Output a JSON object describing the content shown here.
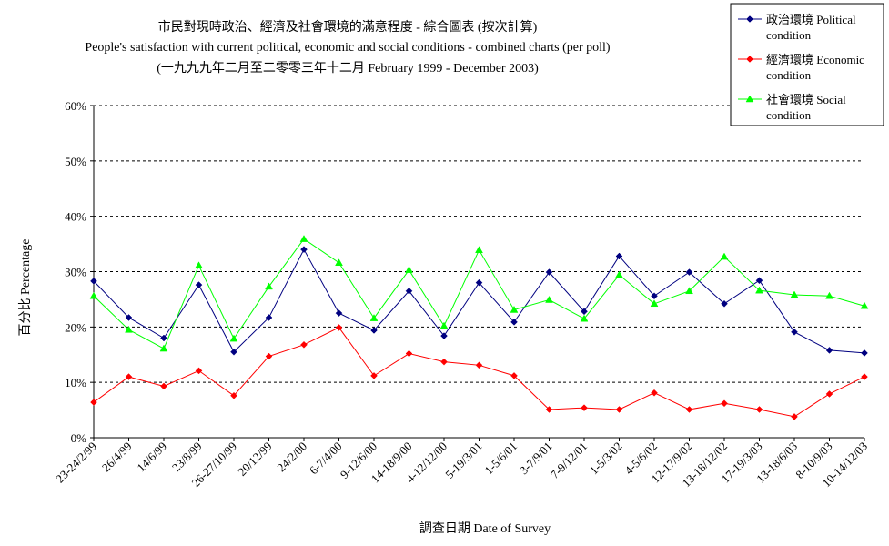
{
  "chart_data": {
    "type": "line",
    "title": [
      "市民對現時政治、經濟及社會環境的滿意程度 - 綜合圖表 (按次計算)",
      "People's satisfaction with current political, economic and social conditions - combined charts  (per poll)",
      "(一九九九年二月至二零零三年十二月 February 1999 - December 2003)"
    ],
    "xlabel": "調查日期 Date of Survey",
    "ylabel": "百分比 Percentage",
    "ylim": [
      0,
      60
    ],
    "yticks": [
      "0%",
      "10%",
      "20%",
      "30%",
      "40%",
      "50%",
      "60%"
    ],
    "grid": "horizontal dashed",
    "legend_position": "top-right",
    "categories": [
      "23-24/2/99",
      "26/4/99",
      "14/6/99",
      "23/8/99",
      "26-27/10/99",
      "20/12/99",
      "24/2/00",
      "6-7/4/00",
      "9-12/6/00",
      "14-18/9/00",
      "4-12/12/00",
      "5-19/3/01",
      "1-5/6/01",
      "3-7/9/01",
      "7-9/12/01",
      "1-5/3/02",
      "4-5/6/02",
      "12-17/9/02",
      "13-18/12/02",
      "17-19/3/03",
      "13-18/6/03",
      "8-10/9/03",
      "10-14/12/03"
    ],
    "series": [
      {
        "name": "政治環境 Political condition",
        "legend_lines": [
          "政治環境 Political",
          "condition"
        ],
        "color": "#000080",
        "marker": "diamond",
        "values": [
          28.3,
          21.7,
          18.0,
          27.6,
          15.5,
          21.7,
          34.0,
          22.5,
          19.4,
          26.5,
          18.4,
          28.0,
          20.9,
          29.9,
          22.8,
          32.8,
          25.6,
          29.9,
          24.2,
          28.4,
          19.1,
          15.8,
          15.3
        ]
      },
      {
        "name": "經濟環境 Economic condition",
        "legend_lines": [
          "經濟環境 Economic",
          "condition"
        ],
        "color": "#ff0000",
        "marker": "diamond",
        "values": [
          6.4,
          11.0,
          9.3,
          12.1,
          7.6,
          14.7,
          16.8,
          19.9,
          11.2,
          15.2,
          13.7,
          13.1,
          11.2,
          5.1,
          5.4,
          5.1,
          8.1,
          5.1,
          6.2,
          5.1,
          3.8,
          7.9,
          11.0
        ]
      },
      {
        "name": "社會環境 Social condition",
        "legend_lines": [
          "社會環境 Social",
          "condition"
        ],
        "color": "#00ff00",
        "marker": "triangle",
        "values": [
          25.6,
          19.5,
          16.1,
          31.1,
          17.9,
          27.3,
          35.9,
          31.6,
          21.6,
          30.3,
          20.2,
          33.9,
          23.1,
          24.9,
          21.5,
          29.4,
          24.2,
          26.5,
          32.7,
          26.6,
          25.8,
          25.6,
          23.8
        ]
      }
    ]
  }
}
